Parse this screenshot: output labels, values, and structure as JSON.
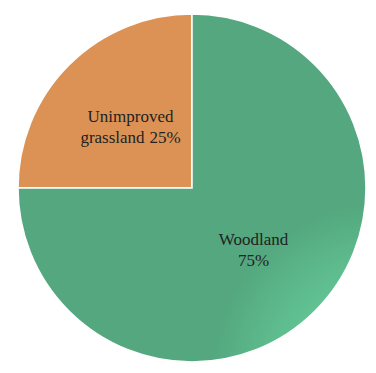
{
  "chart_data": {
    "type": "pie",
    "categories": [
      "Unimproved grassland",
      "Woodland"
    ],
    "values": [
      25,
      75
    ],
    "value_labels": [
      "25%",
      "75%"
    ],
    "colors": [
      "#f5a25d",
      "#5dba8c"
    ],
    "data_labels": true
  }
}
